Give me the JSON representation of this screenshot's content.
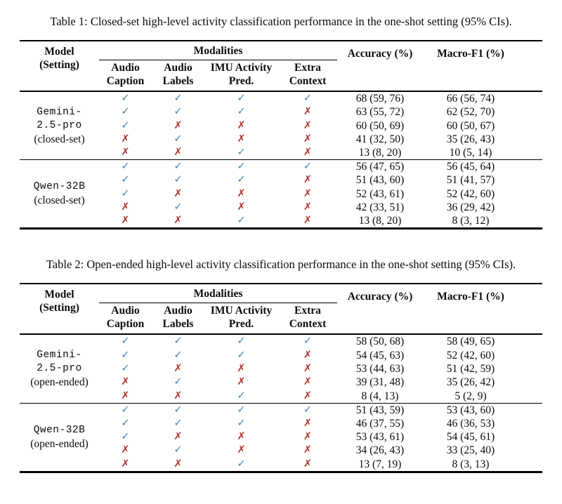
{
  "icons": {
    "check": "✓",
    "cross": "✗"
  },
  "colors": {
    "check": "#4a80b0",
    "cross": "#ae3531"
  },
  "header": {
    "model_line1": "Model",
    "model_line2": "(Setting)",
    "modalities": "Modalities",
    "subcols": [
      {
        "line1": "Audio",
        "line2": "Caption"
      },
      {
        "line1": "Audio",
        "line2": "Labels"
      },
      {
        "line1": "IMU Activity",
        "line2": "Pred."
      },
      {
        "line1": "Extra",
        "line2": "Context"
      }
    ],
    "accuracy": "Accuracy (%)",
    "macro_f1": "Macro-F1 (%)"
  },
  "table1": {
    "caption": "Table 1: Closed-set high-level activity classification performance in the one-shot setting (95% CIs).",
    "blocks": [
      {
        "model_lines": [
          "Gemini-",
          "2.5-pro"
        ],
        "setting": "(closed-set)",
        "rows": [
          {
            "marks": [
              true,
              true,
              true,
              true
            ],
            "accuracy": "68 (59, 76)",
            "macro_f1": "66 (56, 74)"
          },
          {
            "marks": [
              true,
              true,
              true,
              false
            ],
            "accuracy": "63 (55, 72)",
            "macro_f1": "62 (52, 70)"
          },
          {
            "marks": [
              true,
              false,
              false,
              false
            ],
            "accuracy": "60 (50, 69)",
            "macro_f1": "60 (50, 67)"
          },
          {
            "marks": [
              false,
              true,
              false,
              false
            ],
            "accuracy": "41 (32, 50)",
            "macro_f1": "35 (26, 43)"
          },
          {
            "marks": [
              false,
              false,
              true,
              false
            ],
            "accuracy": "13 (8, 20)",
            "macro_f1": "10 (5, 14)"
          }
        ]
      },
      {
        "model_lines": [
          "Qwen-32B"
        ],
        "setting": "(closed-set)",
        "rows": [
          {
            "marks": [
              true,
              true,
              true,
              true
            ],
            "accuracy": "56 (47, 65)",
            "macro_f1": "56 (45, 64)"
          },
          {
            "marks": [
              true,
              true,
              true,
              false
            ],
            "accuracy": "51 (43, 60)",
            "macro_f1": "51 (41, 57)"
          },
          {
            "marks": [
              true,
              false,
              false,
              false
            ],
            "accuracy": "52 (43, 61)",
            "macro_f1": "52 (42, 60)"
          },
          {
            "marks": [
              false,
              true,
              false,
              false
            ],
            "accuracy": "42 (33, 51)",
            "macro_f1": "36 (29, 42)"
          },
          {
            "marks": [
              false,
              false,
              true,
              false
            ],
            "accuracy": "13 (8, 20)",
            "macro_f1": "8 (3, 12)"
          }
        ]
      }
    ]
  },
  "table2": {
    "caption": "Table 2: Open-ended high-level activity classification performance in the one-shot setting (95% CIs).",
    "blocks": [
      {
        "model_lines": [
          "Gemini-",
          "2.5-pro"
        ],
        "setting": "(open-ended)",
        "rows": [
          {
            "marks": [
              true,
              true,
              true,
              true
            ],
            "accuracy": "58 (50, 68)",
            "macro_f1": "58 (49, 65)"
          },
          {
            "marks": [
              true,
              true,
              true,
              false
            ],
            "accuracy": "54 (45, 63)",
            "macro_f1": "52 (42, 60)"
          },
          {
            "marks": [
              true,
              false,
              false,
              false
            ],
            "accuracy": "53 (44, 63)",
            "macro_f1": "51 (42, 59)"
          },
          {
            "marks": [
              false,
              true,
              false,
              false
            ],
            "accuracy": "39 (31, 48)",
            "macro_f1": "35 (26, 42)"
          },
          {
            "marks": [
              false,
              false,
              true,
              false
            ],
            "accuracy": "8 (4, 13)",
            "macro_f1": "5 (2, 9)"
          }
        ]
      },
      {
        "model_lines": [
          "Qwen-32B"
        ],
        "setting": "(open-ended)",
        "rows": [
          {
            "marks": [
              true,
              true,
              true,
              true
            ],
            "accuracy": "51 (43, 59)",
            "macro_f1": "53 (43, 60)"
          },
          {
            "marks": [
              true,
              true,
              true,
              false
            ],
            "accuracy": "46 (37, 55)",
            "macro_f1": "46 (36, 53)"
          },
          {
            "marks": [
              true,
              false,
              false,
              false
            ],
            "accuracy": "53 (43, 61)",
            "macro_f1": "54 (45, 61)"
          },
          {
            "marks": [
              false,
              true,
              false,
              false
            ],
            "accuracy": "34 (26, 43)",
            "macro_f1": "33 (25, 40)"
          },
          {
            "marks": [
              false,
              false,
              true,
              false
            ],
            "accuracy": "13 (7, 19)",
            "macro_f1": "8 (3, 13)"
          }
        ]
      }
    ]
  }
}
